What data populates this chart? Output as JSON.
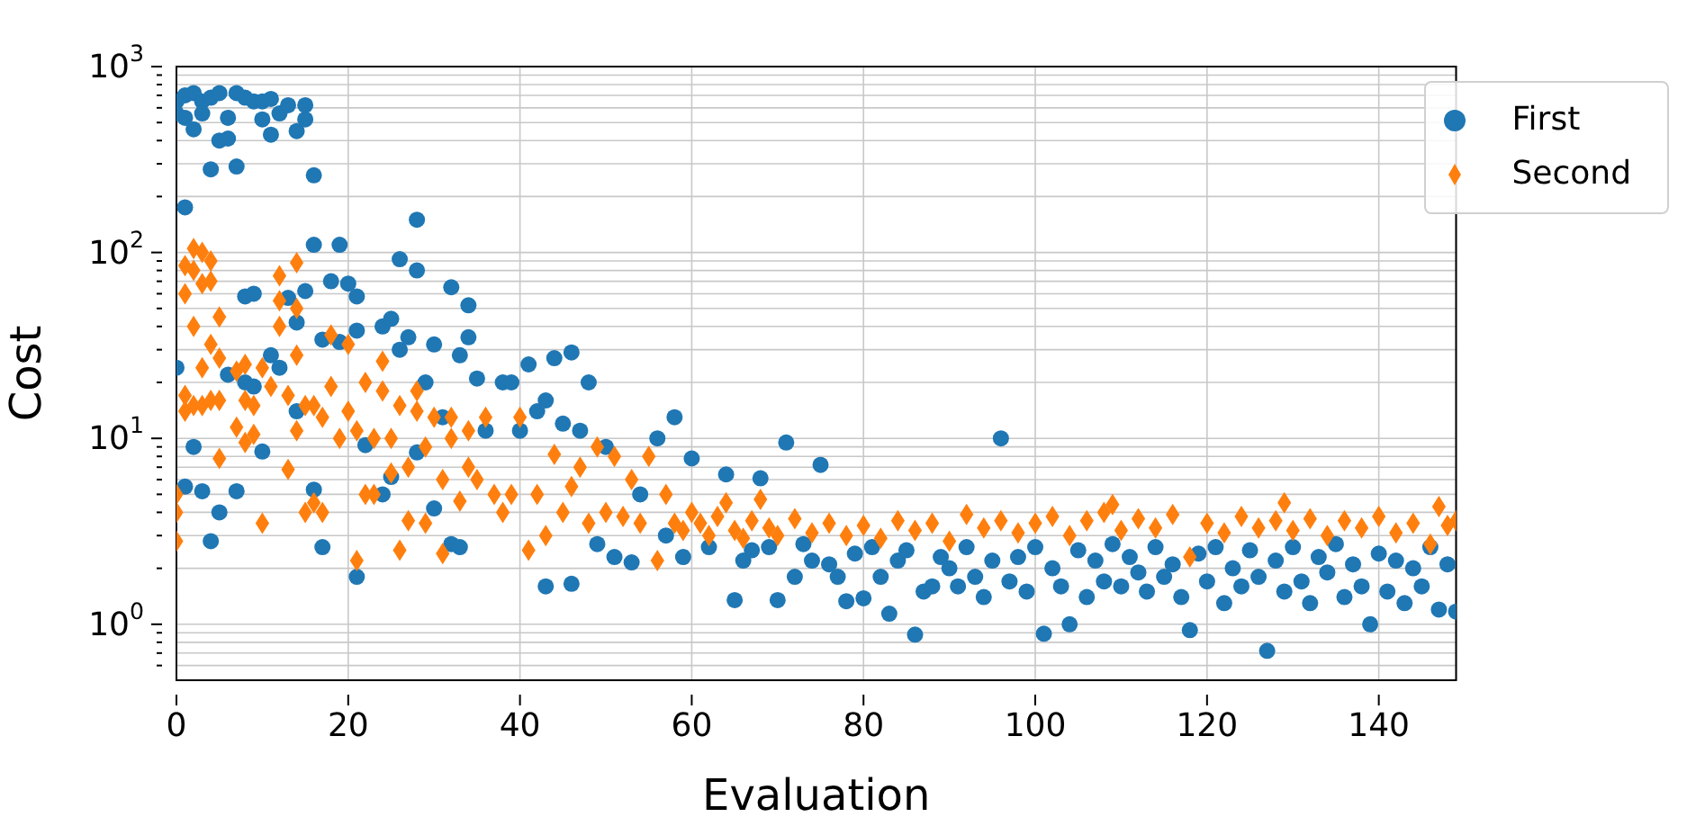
{
  "chart_data": {
    "type": "scatter",
    "xlabel": "Evaluation",
    "ylabel": "Cost",
    "log": "y",
    "grid": true,
    "legend": "top right",
    "xlim": [
      0,
      149
    ],
    "xticks": [
      0,
      20,
      40,
      60,
      80,
      100,
      120,
      140
    ],
    "ylim": [
      0.5,
      1000
    ],
    "yticks": [
      {
        "value": 0.6,
        "label": null
      },
      {
        "value": 0.7,
        "label": null
      },
      {
        "value": 0.8,
        "label": null
      },
      {
        "value": 0.9,
        "label": null
      },
      {
        "value": 1,
        "label": "10$^{0}$"
      },
      {
        "value": 2,
        "label": null
      },
      {
        "value": 3,
        "label": null
      },
      {
        "value": 4,
        "label": null
      },
      {
        "value": 5,
        "label": null
      },
      {
        "value": 6,
        "label": null
      },
      {
        "value": 7,
        "label": null
      },
      {
        "value": 8,
        "label": null
      },
      {
        "value": 9,
        "label": null
      },
      {
        "value": 10,
        "label": "10$^{1}$"
      },
      {
        "value": 20,
        "label": null
      },
      {
        "value": 30,
        "label": null
      },
      {
        "value": 40,
        "label": null
      },
      {
        "value": 50,
        "label": null
      },
      {
        "value": 60,
        "label": null
      },
      {
        "value": 70,
        "label": null
      },
      {
        "value": 80,
        "label": null
      },
      {
        "value": 90,
        "label": null
      },
      {
        "value": 100,
        "label": "10$^{2}$"
      },
      {
        "value": 200,
        "label": null
      },
      {
        "value": 300,
        "label": null
      },
      {
        "value": 400,
        "label": null
      },
      {
        "value": 500,
        "label": null
      },
      {
        "value": 600,
        "label": null
      },
      {
        "value": 700,
        "label": null
      },
      {
        "value": 800,
        "label": null
      },
      {
        "value": 900,
        "label": null
      },
      {
        "value": 1000,
        "label": "10$^{3}$"
      }
    ],
    "series": [
      {
        "name": "First",
        "color": "#1f77b4",
        "marker": "circle",
        "x": [
          0,
          0,
          0,
          1,
          1,
          1,
          1,
          2,
          2,
          2,
          3,
          3,
          3,
          4,
          4,
          4,
          5,
          5,
          5,
          6,
          6,
          6,
          7,
          7,
          7,
          8,
          8,
          8,
          9,
          9,
          9,
          10,
          10,
          10,
          11,
          11,
          11,
          12,
          12,
          13,
          13,
          14,
          14,
          14,
          15,
          15,
          15,
          16,
          16,
          16,
          17,
          17,
          18,
          19,
          19,
          20,
          21,
          21,
          21,
          22,
          24,
          24,
          25,
          25,
          26,
          26,
          27,
          28,
          28,
          28,
          29,
          30,
          30,
          31,
          32,
          32,
          33,
          33,
          34,
          34,
          35,
          36,
          38,
          39,
          40,
          41,
          42,
          43,
          43,
          44,
          45,
          46,
          46,
          47,
          48,
          49,
          50,
          51,
          53,
          54,
          56,
          57,
          58,
          59,
          60,
          62,
          64,
          65,
          66,
          67,
          68,
          69,
          70,
          71,
          72,
          73,
          74,
          75,
          76,
          77,
          78,
          79,
          80,
          81,
          82,
          83,
          84,
          85,
          86,
          87,
          88,
          89,
          90,
          91,
          92,
          93,
          94,
          95,
          96,
          97,
          98,
          99,
          100,
          101,
          102,
          103,
          104,
          105,
          106,
          107,
          108,
          109,
          110,
          111,
          112,
          113,
          114,
          115,
          116,
          117,
          118,
          119,
          120,
          121,
          122,
          123,
          124,
          125,
          126,
          127,
          128,
          129,
          130,
          131,
          132,
          133,
          134,
          135,
          136,
          137,
          138,
          139,
          140,
          141,
          142,
          143,
          144,
          145,
          146,
          147,
          148,
          149
        ],
        "values": [
          650,
          560,
          24,
          700,
          530,
          175,
          5.5,
          720,
          460,
          9,
          650,
          560,
          5.2,
          680,
          280,
          2.8,
          720,
          400,
          4,
          530,
          410,
          22,
          720,
          290,
          5.2,
          680,
          58,
          20,
          650,
          60,
          19,
          650,
          520,
          8.5,
          670,
          430,
          28,
          560,
          24,
          620,
          57,
          450,
          42,
          14,
          620,
          520,
          62,
          260,
          110,
          5.3,
          34,
          2.6,
          70,
          110,
          33,
          68,
          58,
          38,
          1.8,
          9.2,
          40,
          5,
          44,
          6.2,
          92,
          30,
          35,
          150,
          80,
          8.4,
          20,
          32,
          4.2,
          13,
          65,
          2.7,
          28,
          2.6,
          52,
          35,
          21,
          11,
          20,
          20,
          11,
          25,
          14,
          16,
          1.6,
          27,
          12,
          29,
          1.65,
          11,
          20,
          2.7,
          9,
          2.3,
          2.15,
          5,
          10,
          3,
          13,
          2.3,
          7.8,
          2.6,
          6.4,
          1.35,
          2.2,
          2.5,
          6.1,
          2.6,
          1.35,
          9.5,
          1.8,
          2.7,
          2.2,
          7.2,
          2.1,
          1.8,
          1.33,
          2.4,
          1.38,
          2.6,
          1.8,
          1.14,
          2.2,
          2.5,
          0.88,
          1.5,
          1.6,
          2.3,
          2,
          1.6,
          2.6,
          1.8,
          1.4,
          2.2,
          10,
          1.7,
          2.3,
          1.5,
          2.6,
          0.89,
          2,
          1.6,
          1,
          2.5,
          1.4,
          2.2,
          1.7,
          2.7,
          1.6,
          2.3,
          1.9,
          1.5,
          2.6,
          1.8,
          2.1,
          1.4,
          0.93,
          2.4,
          1.7,
          2.6,
          1.3,
          2,
          1.6,
          2.5,
          1.8,
          0.72,
          2.2,
          1.5,
          2.6,
          1.7,
          1.3,
          2.3,
          1.9,
          2.7,
          1.4,
          2.1,
          1.6,
          1,
          2.4,
          1.5,
          2.2,
          1.3,
          2,
          1.6,
          2.6,
          1.2,
          2.1,
          1.17
        ]
      },
      {
        "name": "Second",
        "color": "#ff7f0e",
        "marker": "diamond",
        "x": [
          0,
          0,
          0,
          1,
          1,
          1,
          1,
          2,
          2,
          2,
          2,
          3,
          3,
          3,
          3,
          4,
          4,
          4,
          4,
          5,
          5,
          5,
          5,
          7,
          7,
          8,
          8,
          8,
          9,
          9,
          10,
          10,
          11,
          12,
          12,
          12,
          13,
          13,
          14,
          14,
          14,
          14,
          15,
          15,
          16,
          16,
          17,
          17,
          18,
          18,
          19,
          20,
          20,
          21,
          21,
          22,
          22,
          23,
          23,
          24,
          24,
          25,
          25,
          26,
          26,
          27,
          27,
          28,
          28,
          29,
          29,
          30,
          31,
          31,
          32,
          32,
          33,
          34,
          34,
          35,
          36,
          37,
          38,
          39,
          40,
          41,
          42,
          43,
          44,
          45,
          46,
          47,
          48,
          49,
          50,
          51,
          52,
          53,
          54,
          55,
          56,
          57,
          58,
          59,
          60,
          61,
          62,
          63,
          64,
          65,
          66,
          67,
          68,
          69,
          70,
          72,
          74,
          76,
          78,
          80,
          82,
          84,
          86,
          88,
          90,
          92,
          94,
          96,
          98,
          100,
          102,
          104,
          106,
          108,
          109,
          110,
          112,
          114,
          116,
          118,
          120,
          122,
          124,
          126,
          128,
          129,
          130,
          132,
          134,
          136,
          138,
          140,
          142,
          144,
          146,
          147,
          148,
          149
        ],
        "values": [
          5,
          4,
          2.8,
          85,
          60,
          17,
          14,
          105,
          80,
          40,
          15,
          100,
          68,
          24,
          15,
          90,
          70,
          32,
          16,
          45,
          27,
          16,
          7.8,
          23,
          11.5,
          25,
          9.5,
          16,
          10.5,
          15,
          24,
          3.5,
          19,
          75,
          55,
          40,
          17,
          6.8,
          88,
          50,
          28,
          11,
          15,
          4,
          15,
          4.5,
          13,
          4,
          36,
          19,
          10,
          32,
          14,
          11,
          2.2,
          20,
          5,
          10,
          5,
          26,
          18,
          10,
          6.5,
          15,
          2.5,
          7,
          3.6,
          18,
          14,
          9,
          3.5,
          13,
          6,
          2.4,
          13,
          10,
          4.6,
          11,
          7,
          6,
          13,
          5,
          4,
          5,
          13,
          2.5,
          5,
          3,
          8.2,
          4,
          5.5,
          7,
          3.5,
          9,
          4,
          8,
          3.8,
          6,
          3.5,
          8,
          2.2,
          5,
          3.5,
          3.2,
          4,
          3.5,
          3,
          3.8,
          4.5,
          3.2,
          2.9,
          3.6,
          4.7,
          3.3,
          3,
          3.7,
          3.1,
          3.5,
          3,
          3.4,
          2.9,
          3.6,
          3.2,
          3.5,
          2.8,
          3.9,
          3.3,
          3.6,
          3.1,
          3.5,
          3.8,
          3,
          3.6,
          4,
          4.4,
          3.2,
          3.7,
          3.3,
          3.9,
          2.3,
          3.5,
          3.1,
          3.8,
          3.3,
          3.6,
          4.5,
          3.2,
          3.7,
          3,
          3.6,
          3.3,
          3.8,
          3.1,
          3.5,
          2.7,
          4.3,
          3.4,
          3.6
        ]
      }
    ]
  }
}
